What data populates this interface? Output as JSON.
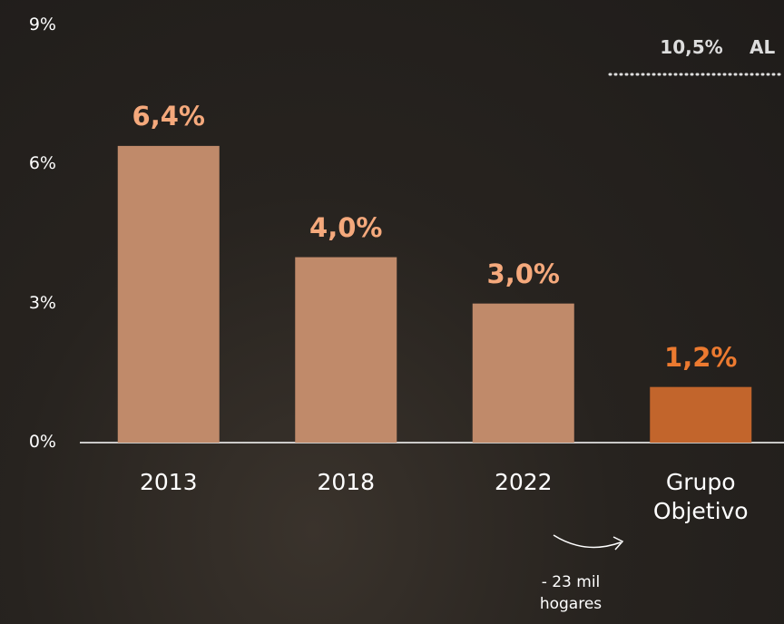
{
  "chart_data": {
    "type": "bar",
    "categories": [
      "2013",
      "2018",
      "2022",
      "Grupo Objetivo"
    ],
    "values": [
      6.4,
      4.0,
      3.0,
      1.2
    ],
    "value_labels": [
      "6,4%",
      "4,0%",
      "3,0%",
      "1,2%"
    ],
    "colors": [
      "#c08a6a",
      "#c08a6a",
      "#c08a6a",
      "#c2652c"
    ],
    "label_colors": [
      "#f5a97c",
      "#f5a97c",
      "#f5a97c",
      "#ec7a30"
    ],
    "ylim": [
      0,
      9
    ],
    "yticks": [
      {
        "value": 0,
        "label": "0%"
      },
      {
        "value": 3,
        "label": "3%"
      },
      {
        "value": 6,
        "label": "6%"
      },
      {
        "value": 9,
        "label": "9%"
      }
    ],
    "annotations": [
      "10,5%",
      "AL",
      "- 23 mil hogares"
    ]
  }
}
